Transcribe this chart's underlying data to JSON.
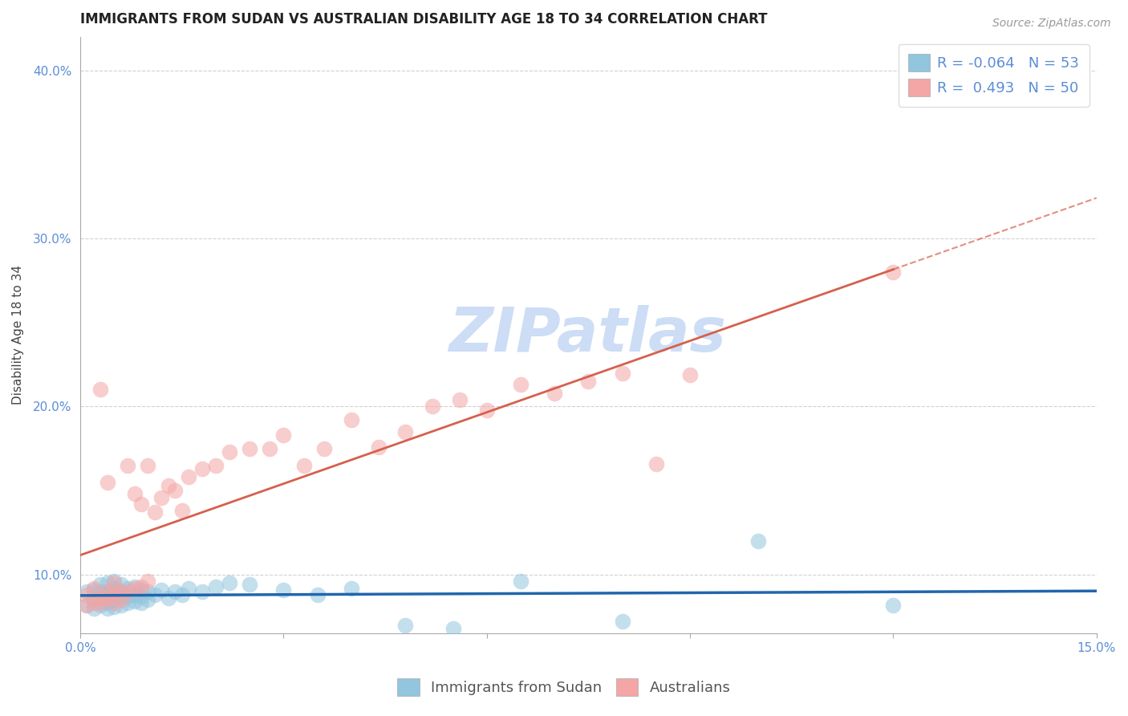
{
  "title": "IMMIGRANTS FROM SUDAN VS AUSTRALIAN DISABILITY AGE 18 TO 34 CORRELATION CHART",
  "source": "Source: ZipAtlas.com",
  "ylabel": "Disability Age 18 to 34",
  "xlim": [
    0.0,
    0.15
  ],
  "ylim": [
    0.065,
    0.42
  ],
  "xticks": [
    0.0,
    0.03,
    0.06,
    0.09,
    0.12,
    0.15
  ],
  "yticks": [
    0.1,
    0.2,
    0.3,
    0.4
  ],
  "ytick_labels": [
    "10.0%",
    "20.0%",
    "30.0%",
    "40.0%"
  ],
  "xtick_labels": [
    "0.0%",
    "",
    "",
    "",
    "",
    "15.0%"
  ],
  "blue_R": -0.064,
  "blue_N": 53,
  "pink_R": 0.493,
  "pink_N": 50,
  "blue_color": "#92c5de",
  "pink_color": "#f4a5a5",
  "blue_line_color": "#2166ac",
  "pink_line_color": "#d6604d",
  "axis_color": "#5b8ed6",
  "grid_color": "#cccccc",
  "watermark": "ZIPatlas",
  "watermark_color": "#ccddf5",
  "legend_label_blue": "Immigrants from Sudan",
  "legend_label_pink": "Australians",
  "blue_x": [
    0.001,
    0.001,
    0.002,
    0.002,
    0.002,
    0.003,
    0.003,
    0.003,
    0.003,
    0.004,
    0.004,
    0.004,
    0.004,
    0.004,
    0.005,
    0.005,
    0.005,
    0.005,
    0.005,
    0.006,
    0.006,
    0.006,
    0.006,
    0.007,
    0.007,
    0.007,
    0.008,
    0.008,
    0.008,
    0.009,
    0.009,
    0.009,
    0.01,
    0.01,
    0.011,
    0.012,
    0.013,
    0.014,
    0.015,
    0.016,
    0.018,
    0.02,
    0.022,
    0.025,
    0.03,
    0.035,
    0.04,
    0.048,
    0.055,
    0.065,
    0.08,
    0.1,
    0.12
  ],
  "blue_y": [
    0.082,
    0.09,
    0.08,
    0.085,
    0.091,
    0.082,
    0.086,
    0.09,
    0.094,
    0.08,
    0.083,
    0.087,
    0.09,
    0.095,
    0.081,
    0.085,
    0.088,
    0.092,
    0.096,
    0.082,
    0.086,
    0.09,
    0.094,
    0.083,
    0.087,
    0.092,
    0.084,
    0.088,
    0.093,
    0.083,
    0.087,
    0.091,
    0.085,
    0.09,
    0.088,
    0.091,
    0.086,
    0.09,
    0.088,
    0.092,
    0.09,
    0.093,
    0.095,
    0.094,
    0.091,
    0.088,
    0.092,
    0.07,
    0.068,
    0.096,
    0.072,
    0.12,
    0.082
  ],
  "pink_x": [
    0.001,
    0.001,
    0.002,
    0.002,
    0.003,
    0.003,
    0.003,
    0.004,
    0.004,
    0.004,
    0.005,
    0.005,
    0.005,
    0.006,
    0.006,
    0.007,
    0.007,
    0.008,
    0.008,
    0.009,
    0.009,
    0.01,
    0.01,
    0.011,
    0.012,
    0.013,
    0.014,
    0.015,
    0.016,
    0.018,
    0.02,
    0.022,
    0.025,
    0.028,
    0.03,
    0.033,
    0.036,
    0.04,
    0.044,
    0.048,
    0.052,
    0.056,
    0.06,
    0.065,
    0.07,
    0.075,
    0.08,
    0.085,
    0.09,
    0.12
  ],
  "pink_y": [
    0.082,
    0.088,
    0.083,
    0.092,
    0.083,
    0.086,
    0.21,
    0.086,
    0.09,
    0.155,
    0.083,
    0.089,
    0.095,
    0.085,
    0.09,
    0.09,
    0.165,
    0.092,
    0.148,
    0.093,
    0.142,
    0.096,
    0.165,
    0.137,
    0.146,
    0.153,
    0.15,
    0.138,
    0.158,
    0.163,
    0.165,
    0.173,
    0.175,
    0.175,
    0.183,
    0.165,
    0.175,
    0.192,
    0.176,
    0.185,
    0.2,
    0.204,
    0.198,
    0.213,
    0.208,
    0.215,
    0.22,
    0.166,
    0.219,
    0.28
  ],
  "title_fontsize": 12,
  "source_fontsize": 10,
  "axis_label_fontsize": 11,
  "tick_fontsize": 11,
  "legend_fontsize": 13,
  "watermark_fontsize": 55
}
